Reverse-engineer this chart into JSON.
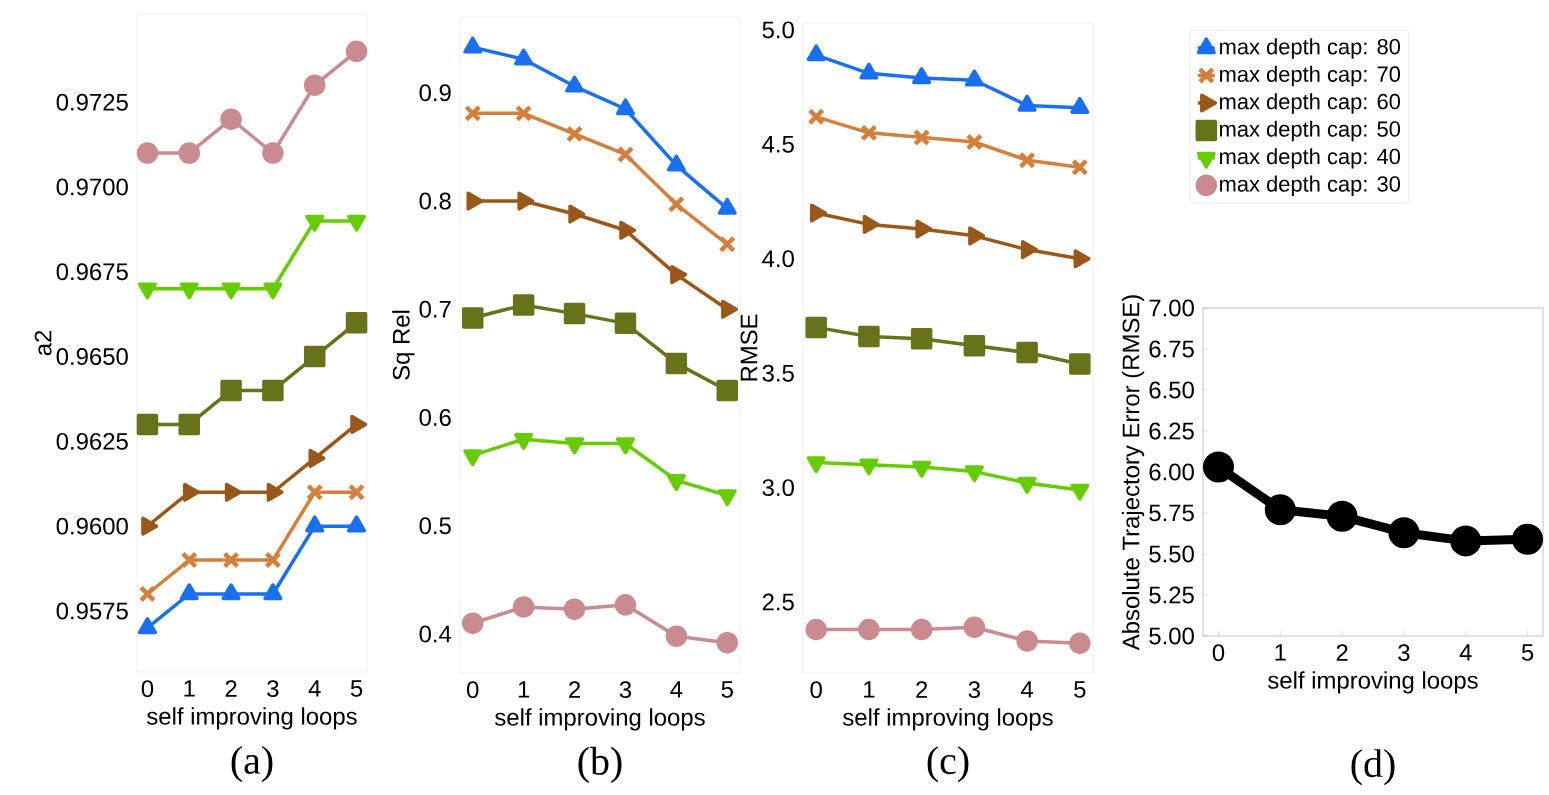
{
  "chart_data": [
    {
      "type": "line",
      "xlabel": "self improving loops",
      "ylabel": "a2",
      "annotations": [
        "(a)"
      ],
      "x": [
        0,
        1,
        2,
        3,
        4,
        5
      ],
      "xlim": [
        -0.25,
        5.25
      ],
      "xticks": [
        0,
        1,
        2,
        3,
        4,
        5
      ],
      "ylim": [
        0.9557,
        0.9751
      ],
      "yticks": [
        {
          "value": 0.9575,
          "label": "0.9575"
        },
        {
          "value": 0.96,
          "label": "0.9600"
        },
        {
          "value": 0.9625,
          "label": "0.9625"
        },
        {
          "value": 0.965,
          "label": "0.9650"
        },
        {
          "value": 0.9675,
          "label": "0.9675"
        },
        {
          "value": 0.97,
          "label": "0.9700"
        },
        {
          "value": 0.9725,
          "label": "0.9725"
        }
      ],
      "grid": false,
      "line_style": "solid",
      "series": [
        {
          "color": "#1a6ff0",
          "marker": "triangle",
          "values": [
            0.957,
            0.958,
            0.958,
            0.958,
            0.96,
            0.96
          ]
        },
        {
          "color": "#d2803c",
          "marker": "cross",
          "values": [
            0.958,
            0.959,
            0.959,
            0.959,
            0.961,
            0.961
          ]
        },
        {
          "color": "#99581a",
          "marker": "triangle-right",
          "values": [
            0.96,
            0.961,
            0.961,
            0.961,
            0.962,
            0.963
          ]
        },
        {
          "color": "#66731a",
          "marker": "square",
          "values": [
            0.963,
            0.963,
            0.964,
            0.964,
            0.965,
            0.966
          ]
        },
        {
          "color": "#66cc00",
          "marker": "triangle-down",
          "values": [
            0.967,
            0.967,
            0.967,
            0.967,
            0.969,
            0.969
          ]
        },
        {
          "color": "#c98a90",
          "marker": "circle",
          "values": [
            0.971,
            0.971,
            0.972,
            0.971,
            0.973,
            0.974
          ]
        }
      ]
    },
    {
      "type": "line",
      "xlabel": "self improving loops",
      "ylabel": "Sq Rel",
      "annotations": [
        "(b)"
      ],
      "x": [
        0,
        1,
        2,
        3,
        4,
        5
      ],
      "xlim": [
        -0.25,
        5.25
      ],
      "xticks": [
        0,
        1,
        2,
        3,
        4,
        5
      ],
      "ylim": [
        0.364,
        0.97
      ],
      "yticks": [
        0.4,
        0.5,
        0.6,
        0.7,
        0.8,
        0.9
      ],
      "grid": false,
      "line_style": "solid",
      "series": [
        {
          "color": "#1a6ff0",
          "marker": "triangle",
          "values": [
            0.942,
            0.931,
            0.906,
            0.885,
            0.833,
            0.793
          ]
        },
        {
          "color": "#d2803c",
          "marker": "cross",
          "values": [
            0.881,
            0.881,
            0.862,
            0.843,
            0.797,
            0.76
          ]
        },
        {
          "color": "#99581a",
          "marker": "triangle-right",
          "values": [
            0.8,
            0.8,
            0.788,
            0.773,
            0.732,
            0.7
          ]
        },
        {
          "color": "#66731a",
          "marker": "square",
          "values": [
            0.692,
            0.704,
            0.696,
            0.687,
            0.65,
            0.625
          ]
        },
        {
          "color": "#66cc00",
          "marker": "triangle-down",
          "values": [
            0.565,
            0.58,
            0.576,
            0.576,
            0.542,
            0.528
          ]
        },
        {
          "color": "#c98a90",
          "marker": "circle",
          "values": [
            0.41,
            0.425,
            0.423,
            0.427,
            0.398,
            0.392
          ]
        }
      ]
    },
    {
      "type": "line",
      "xlabel": "self improving loops",
      "ylabel": "RMSE",
      "annotations": [
        "(c)"
      ],
      "x": [
        0,
        1,
        2,
        3,
        4,
        5
      ],
      "xlim": [
        -0.25,
        5.25
      ],
      "xticks": [
        0,
        1,
        2,
        3,
        4,
        5
      ],
      "ylim": [
        2.19,
        5.03
      ],
      "yticks": [
        2.5,
        {
          "value": 3,
          "label": "3.0"
        },
        3.5,
        {
          "value": 4,
          "label": "4.0"
        },
        4.5,
        {
          "value": 5,
          "label": "5.0"
        }
      ],
      "grid": false,
      "line_style": "solid",
      "legend": "right",
      "series": [
        {
          "name": "max depth cap: 80",
          "color": "#1a6ff0",
          "marker": "triangle",
          "values": [
            4.89,
            4.81,
            4.79,
            4.78,
            4.67,
            4.66
          ]
        },
        {
          "name": "max depth cap: 70",
          "color": "#d2803c",
          "marker": "cross",
          "values": [
            4.62,
            4.55,
            4.53,
            4.51,
            4.43,
            4.4
          ]
        },
        {
          "name": "max depth cap: 60",
          "color": "#99581a",
          "marker": "triangle-right",
          "values": [
            4.2,
            4.15,
            4.13,
            4.1,
            4.04,
            4.0
          ]
        },
        {
          "name": "max depth cap: 50",
          "color": "#66731a",
          "marker": "square",
          "values": [
            3.7,
            3.66,
            3.65,
            3.62,
            3.59,
            3.54
          ]
        },
        {
          "name": "max depth cap: 40",
          "color": "#66cc00",
          "marker": "triangle-down",
          "values": [
            3.11,
            3.1,
            3.09,
            3.07,
            3.02,
            2.99
          ]
        },
        {
          "name": "max depth cap: 30",
          "color": "#c98a90",
          "marker": "circle",
          "values": [
            2.38,
            2.38,
            2.38,
            2.39,
            2.33,
            2.32
          ]
        }
      ]
    },
    {
      "type": "line",
      "xlabel": "self improving loops",
      "ylabel": "Absolute Trajectory Error (RMSE)",
      "annotations": [
        "(d)"
      ],
      "x": [
        0,
        1,
        2,
        3,
        4,
        5
      ],
      "xlim": [
        -0.25,
        5.25
      ],
      "xticks": [
        0,
        1,
        2,
        3,
        4,
        5
      ],
      "ylim": [
        5,
        7
      ],
      "yticks": [
        {
          "value": 5,
          "label": "5.00"
        },
        {
          "value": 5.25,
          "label": "5.25"
        },
        {
          "value": 5.5,
          "label": "5.50"
        },
        {
          "value": 5.75,
          "label": "5.75"
        },
        {
          "value": 6,
          "label": "6.00"
        },
        {
          "value": 6.25,
          "label": "6.25"
        },
        {
          "value": 6.5,
          "label": "6.50"
        },
        {
          "value": 6.75,
          "label": "6.75"
        },
        {
          "value": 7,
          "label": "7.00"
        }
      ],
      "grid": false,
      "line_style": "solid",
      "marker": "circle",
      "series": [
        {
          "color": "#000000",
          "values": [
            6.03,
            5.77,
            5.73,
            5.63,
            5.58,
            5.59
          ]
        }
      ]
    }
  ]
}
